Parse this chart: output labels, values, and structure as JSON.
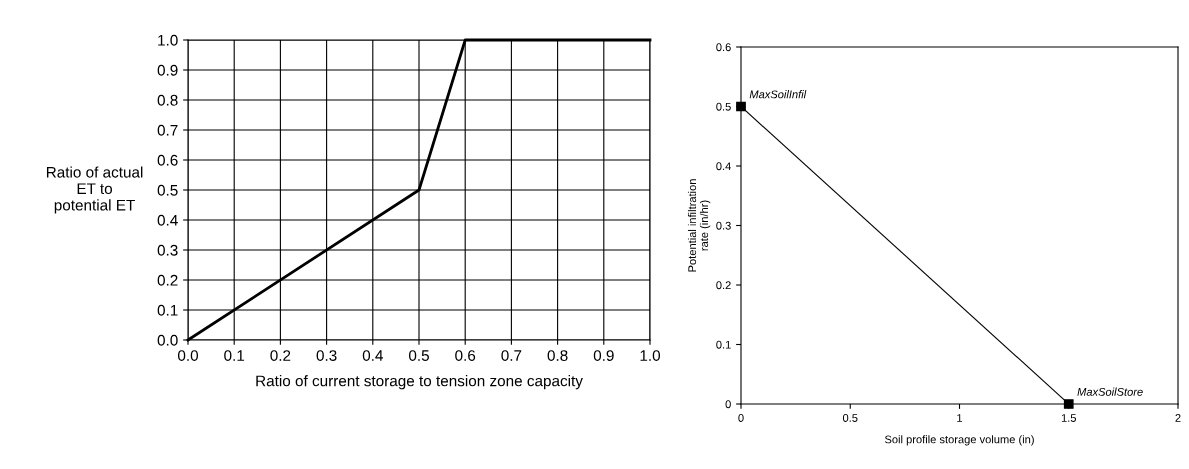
{
  "chart_data": [
    {
      "type": "line",
      "xlabel": "Ratio of current storage to tension zone capacity",
      "ylabel": "Ratio of actual\nET to\npotential ET",
      "x": [
        0.0,
        0.5,
        0.6,
        1.0
      ],
      "series": [
        {
          "color": "#000000",
          "values": [
            0.0,
            0.5,
            1.0,
            1.0
          ]
        }
      ],
      "xlim": [
        0,
        1
      ],
      "ylim": [
        0,
        1
      ],
      "xticks": [
        {
          "value": 0,
          "label": "0.0"
        },
        {
          "value": 0.1,
          "label": "0.1"
        },
        {
          "value": 0.2,
          "label": "0.2"
        },
        {
          "value": 0.3,
          "label": "0.3"
        },
        {
          "value": 0.4,
          "label": "0.4"
        },
        {
          "value": 0.5,
          "label": "0.5"
        },
        {
          "value": 0.6,
          "label": "0.6"
        },
        {
          "value": 0.7,
          "label": "0.7"
        },
        {
          "value": 0.8,
          "label": "0.8"
        },
        {
          "value": 0.9,
          "label": "0.9"
        },
        {
          "value": 1,
          "label": "1.0"
        }
      ],
      "yticks": [
        {
          "value": 0,
          "label": "0.0"
        },
        {
          "value": 0.1,
          "label": "0.1"
        },
        {
          "value": 0.2,
          "label": "0.2"
        },
        {
          "value": 0.3,
          "label": "0.3"
        },
        {
          "value": 0.4,
          "label": "0.4"
        },
        {
          "value": 0.5,
          "label": "0.5"
        },
        {
          "value": 0.6,
          "label": "0.6"
        },
        {
          "value": 0.7,
          "label": "0.7"
        },
        {
          "value": 0.8,
          "label": "0.8"
        },
        {
          "value": 0.9,
          "label": "0.9"
        },
        {
          "value": 1,
          "label": "1.0"
        }
      ],
      "grid": true,
      "marker": "none",
      "line_style": "solid"
    },
    {
      "type": "line",
      "xlabel": "Soil profile storage volume (in)",
      "ylabel": "Potential infiltration\nrate (in/hr)",
      "x": [
        0,
        1.5
      ],
      "series": [
        {
          "color": "#000000",
          "values": [
            0.5,
            0
          ]
        }
      ],
      "xlim": [
        0,
        2
      ],
      "ylim": [
        0,
        0.6
      ],
      "xticks": [
        0,
        0.5,
        1,
        1.5,
        2
      ],
      "yticks": [
        0,
        0.1,
        0.2,
        0.3,
        0.4,
        0.5,
        0.6
      ],
      "annotations": [
        {
          "text": "MaxSoilInfil",
          "x": 0,
          "y": 0.5
        },
        {
          "text": "MaxSoilStore",
          "x": 1.5,
          "y": 0
        }
      ],
      "grid": false,
      "marker": "square",
      "line_style": "solid"
    }
  ]
}
